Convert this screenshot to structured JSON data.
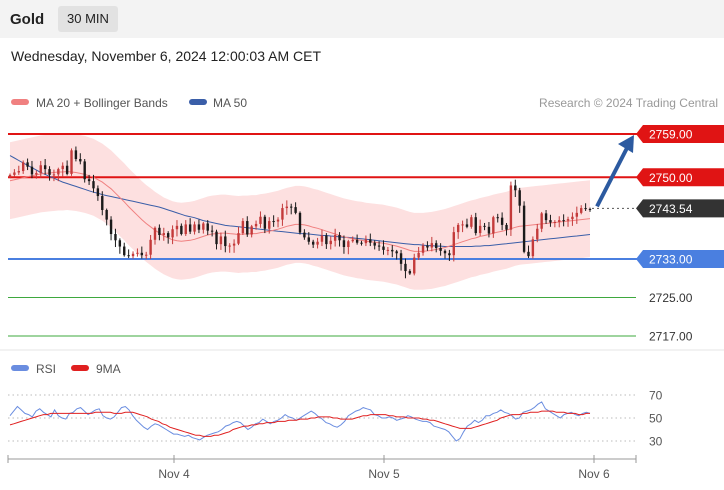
{
  "header": {
    "symbol": "Gold",
    "timeframe": "30 MIN",
    "datetime": "Wednesday, November 6, 2024 12:00:03 AM CET"
  },
  "legend": {
    "ma20": "MA 20 + Bollinger Bands",
    "ma50": "MA 50",
    "credit": "Research © 2024 Trading Central",
    "rsi": "RSI",
    "rsi_ma": "9MA"
  },
  "colors": {
    "resistance": "#e01414",
    "support": "#4a7fe0",
    "target": "#3ea83e",
    "bull_candle": "#c43a3a",
    "bear_candle": "#1a1a1a",
    "ma20": "#f08080",
    "ma50": "#3a5ea8",
    "bollinger_fill": "#fde0e0",
    "rsi": "#6a8de0",
    "rsi_ma": "#e02020",
    "arrow": "#2c5aa0",
    "current_price": "#333333"
  },
  "chart_data": {
    "type": "candlestick",
    "x_ticks": [
      "Nov 4",
      "Nov 5",
      "Nov 6"
    ],
    "price_range": [
      2713,
      2762
    ],
    "levels": [
      {
        "label": "2759.00",
        "value": 2759.0,
        "kind": "resistance"
      },
      {
        "label": "2750.00",
        "value": 2750.0,
        "kind": "resistance"
      },
      {
        "label": "2743.54",
        "value": 2743.54,
        "kind": "current"
      },
      {
        "label": "2733.00",
        "value": 2733.0,
        "kind": "support"
      },
      {
        "label": "2725.00",
        "value": 2725.0,
        "kind": "target"
      },
      {
        "label": "2717.00",
        "value": 2717.0,
        "kind": "target"
      }
    ],
    "projection": {
      "from": 2743.54,
      "to": 2759.0
    },
    "price_series": [
      2750.5,
      2751.0,
      2751.3,
      2753.1,
      2752.2,
      2750.6,
      2750.9,
      2752.5,
      2751.7,
      2750.5,
      2750.6,
      2751.7,
      2752.4,
      2750.7,
      2755.6,
      2753.8,
      2753.3,
      2749.6,
      2749.2,
      2747.7,
      2746.1,
      2743.2,
      2741.2,
      2738.2,
      2736.9,
      2735.6,
      2733.8,
      2733.6,
      2734.1,
      2734.3,
      2733.8,
      2733.9,
      2737.0,
      2739.5,
      2738.0,
      2738.4,
      2737.5,
      2739.2,
      2739.9,
      2738.2,
      2740.2,
      2738.7,
      2740.2,
      2739.1,
      2740.4,
      2738.9,
      2738.7,
      2736.1,
      2737.7,
      2735.7,
      2735.8,
      2736.2,
      2738.4,
      2740.9,
      2738.1,
      2739.8,
      2740.3,
      2741.8,
      2739.3,
      2740.9,
      2740.8,
      2741.2,
      2743.6,
      2743.9,
      2743.8,
      2742.6,
      2738.5,
      2737.5,
      2736.6,
      2736.0,
      2736.6,
      2737.9,
      2736.1,
      2736.8,
      2738.0,
      2736.9,
      2735.5,
      2736.7,
      2737.0,
      2736.4,
      2736.3,
      2737.1,
      2736.4,
      2735.8,
      2735.6,
      2734.9,
      2734.9,
      2734.6,
      2734.2,
      2732.0,
      2730.5,
      2730.0,
      2733.3,
      2734.3,
      2735.8,
      2735.4,
      2736.3,
      2735.3,
      2734.7,
      2734.2,
      2733.8,
      2738.6,
      2740.1,
      2740.2,
      2739.7,
      2741.7,
      2738.4,
      2739.9,
      2739.7,
      2738.3,
      2741.7,
      2741.6,
      2740.1,
      2739.1,
      2748.3,
      2747.3,
      2744.1,
      2734.5,
      2733.6,
      2737.1,
      2739.3,
      2742.5,
      2741.1,
      2740.6,
      2740.7,
      2741.1,
      2741.0,
      2741.3,
      2741.8,
      2742.6,
      2743.6,
      2743.4,
      2743.3
    ],
    "ma20_series": [
      2749.3,
      2749.5,
      2749.7,
      2749.9,
      2750.1,
      2750.3,
      2750.5,
      2750.7,
      2750.8,
      2750.9,
      2751.0,
      2751.1,
      2751.1,
      2751.2,
      2751.1,
      2751.0,
      2750.8,
      2750.6,
      2750.3,
      2750.0,
      2749.5,
      2749.0,
      2748.3,
      2747.6,
      2746.7,
      2745.8,
      2744.9,
      2743.9,
      2743.0,
      2742.1,
      2741.2,
      2740.4,
      2739.7,
      2739.0,
      2738.4,
      2737.8,
      2737.4,
      2737.0,
      2736.8,
      2736.7,
      2736.8,
      2736.9,
      2737.1,
      2737.4,
      2737.7,
      2738.0,
      2738.2,
      2738.3,
      2738.4,
      2738.4,
      2738.3,
      2738.2,
      2738.1,
      2738.2,
      2738.2,
      2738.3,
      2738.3,
      2738.5,
      2738.6,
      2738.8,
      2739.0,
      2739.2,
      2739.5,
      2739.8,
      2740.0,
      2740.2,
      2740.2,
      2740.1,
      2739.9,
      2739.6,
      2739.4,
      2739.1,
      2738.8,
      2738.5,
      2738.2,
      2737.9,
      2737.6,
      2737.4,
      2737.2,
      2737.0,
      2736.9,
      2736.7,
      2736.6,
      2736.5,
      2736.4,
      2736.3,
      2736.1,
      2735.9,
      2735.7,
      2735.4,
      2735.1,
      2734.8,
      2734.6,
      2734.6,
      2734.6,
      2734.7,
      2734.8,
      2735.0,
      2735.2,
      2735.4,
      2735.7,
      2736.0,
      2736.3,
      2736.6,
      2736.9,
      2737.2,
      2737.4,
      2737.7,
      2737.9,
      2738.1,
      2738.4,
      2738.6,
      2738.8,
      2739.0,
      2739.3,
      2739.6,
      2739.8,
      2739.9,
      2740.0,
      2740.1,
      2740.2,
      2740.3,
      2740.4,
      2740.5,
      2740.6,
      2740.7,
      2740.8,
      2740.9,
      2741.0,
      2741.1,
      2741.2,
      2741.3,
      2741.4
    ],
    "ma50_series": [
      2754.5,
      2754.0,
      2753.5,
      2753.0,
      2752.5,
      2752.0,
      2751.5,
      2751.0,
      2750.6,
      2750.2,
      2749.8,
      2749.4,
      2749.0,
      2748.7,
      2748.4,
      2748.1,
      2747.8,
      2747.5,
      2747.2,
      2746.9,
      2746.7,
      2746.4,
      2746.2,
      2746.0,
      2745.8,
      2745.6,
      2745.4,
      2745.2,
      2745.0,
      2744.8,
      2744.6,
      2744.4,
      2744.2,
      2744.0,
      2743.8,
      2743.5,
      2743.2,
      2742.9,
      2742.6,
      2742.3,
      2742.0,
      2741.8,
      2741.6,
      2741.3,
      2741.0,
      2740.8,
      2740.6,
      2740.4,
      2740.2,
      2740.0,
      2739.9,
      2739.8,
      2739.7,
      2739.6,
      2739.5,
      2739.4,
      2739.3,
      2739.2,
      2739.1,
      2739.0,
      2738.9,
      2738.8,
      2738.7,
      2738.6,
      2738.5,
      2738.4,
      2738.3,
      2738.3,
      2738.2,
      2738.1,
      2738.0,
      2737.9,
      2737.9,
      2737.8,
      2737.7,
      2737.6,
      2737.5,
      2737.5,
      2737.4,
      2737.3,
      2737.2,
      2737.1,
      2737.0,
      2736.9,
      2736.8,
      2736.7,
      2736.6,
      2736.5,
      2736.4,
      2736.3,
      2736.2,
      2736.1,
      2736.0,
      2736.0,
      2735.9,
      2735.8,
      2735.8,
      2735.7,
      2735.7,
      2735.6,
      2735.6,
      2735.6,
      2735.6,
      2735.6,
      2735.6,
      2735.6,
      2735.7,
      2735.7,
      2735.8,
      2735.8,
      2735.9,
      2736.0,
      2736.1,
      2736.2,
      2736.3,
      2736.4,
      2736.5,
      2736.6,
      2736.7,
      2736.8,
      2736.9,
      2737.0,
      2737.1,
      2737.2,
      2737.3,
      2737.4,
      2737.5,
      2737.6,
      2737.7,
      2737.8,
      2737.9,
      2738.0,
      2738.1
    ],
    "bollinger_band_width": 8.0,
    "rsi": {
      "levels": [
        70,
        50,
        30
      ],
      "range": [
        20,
        80
      ],
      "values": [
        52,
        56,
        60,
        57,
        54,
        53,
        51,
        56,
        58,
        55,
        53,
        51,
        57,
        52,
        50,
        49,
        54,
        55,
        58,
        59,
        56,
        53,
        55,
        57,
        58,
        52,
        50,
        49,
        51,
        55,
        59,
        60,
        57,
        52,
        48,
        45,
        42,
        40,
        43,
        45,
        44,
        42,
        40,
        38,
        36,
        36,
        35,
        34,
        35,
        33,
        32,
        31,
        33,
        35,
        36,
        37,
        38,
        40,
        43,
        44,
        46,
        47,
        46,
        43,
        40,
        42,
        45,
        46,
        49,
        47,
        45,
        47,
        48,
        50,
        53,
        51,
        50,
        48,
        50,
        52,
        54,
        56,
        54,
        51,
        49,
        46,
        45,
        43,
        42,
        44,
        47,
        52,
        54,
        56,
        57,
        59,
        58,
        57,
        53,
        52,
        50,
        50,
        51,
        50,
        48,
        49,
        50,
        52,
        51,
        49,
        48,
        47,
        47,
        46,
        43,
        42,
        41,
        40,
        38,
        34,
        30,
        32,
        38,
        43,
        45,
        48,
        46,
        48,
        52,
        52,
        54,
        55,
        57,
        55,
        54,
        52,
        49,
        50,
        55,
        56,
        57,
        59,
        62,
        64,
        58,
        56,
        54,
        52,
        50,
        53,
        54,
        55,
        53,
        52,
        54,
        55,
        54
      ],
      "ma_values": [
        44,
        45,
        46,
        47,
        48,
        49,
        50,
        51,
        52,
        53,
        53,
        54,
        54,
        54,
        54,
        54,
        54,
        54,
        54,
        54,
        54,
        54,
        54,
        55,
        55,
        55,
        55,
        55,
        54,
        54,
        54,
        55,
        55,
        55,
        54,
        53,
        52,
        51,
        49,
        48,
        47,
        45,
        44,
        42,
        41,
        40,
        39,
        38,
        37,
        36,
        35,
        35,
        34,
        34,
        34,
        35,
        35,
        36,
        37,
        38,
        40,
        41,
        42,
        43,
        43,
        44,
        44,
        45,
        45,
        46,
        46,
        46,
        47,
        47,
        47,
        48,
        48,
        48,
        49,
        49,
        49,
        50,
        50,
        51,
        51,
        51,
        51,
        50,
        50,
        49,
        49,
        49,
        49,
        50,
        51,
        52,
        52,
        53,
        53,
        53,
        53,
        53,
        52,
        52,
        51,
        51,
        51,
        50,
        50,
        50,
        50,
        49,
        49,
        48,
        48,
        47,
        46,
        45,
        44,
        43,
        42,
        41,
        41,
        41,
        41,
        42,
        43,
        44,
        45,
        46,
        47,
        48,
        50,
        51,
        52,
        53,
        53,
        53,
        54,
        54,
        55,
        55,
        55,
        56,
        56,
        56,
        56,
        55,
        55,
        55,
        54,
        54,
        54,
        53,
        53,
        54,
        54
      ]
    }
  }
}
